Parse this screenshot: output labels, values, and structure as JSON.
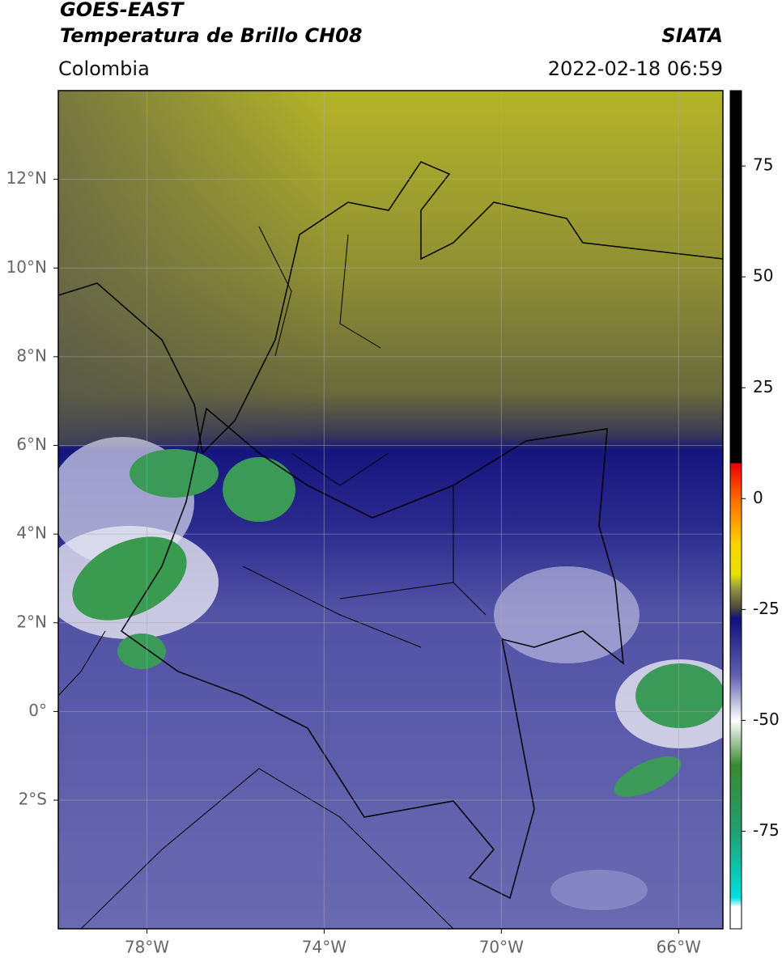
{
  "header": {
    "title": "GOES-EAST",
    "subtitle": "Temperatura de Brillo CH08",
    "agency": "SIATA",
    "region": "Colombia",
    "timestamp": "2022-02-18 06:59"
  },
  "map": {
    "xlim": [
      -80,
      -65
    ],
    "ylim": [
      -4.9,
      14
    ],
    "xticks": [
      {
        "value": -78,
        "label": "78°W"
      },
      {
        "value": -74,
        "label": "74°W"
      },
      {
        "value": -70,
        "label": "70°W"
      },
      {
        "value": -66,
        "label": "66°W"
      }
    ],
    "yticks": [
      {
        "value": 12,
        "label": "12°N"
      },
      {
        "value": 10,
        "label": "10°N"
      },
      {
        "value": 8,
        "label": "8°N"
      },
      {
        "value": 6,
        "label": "6°N"
      },
      {
        "value": 4,
        "label": "4°N"
      },
      {
        "value": 2,
        "label": "2°N"
      },
      {
        "value": 0,
        "label": "0°"
      },
      {
        "value": -2,
        "label": "2°S"
      }
    ],
    "grid": true
  },
  "colorbar": {
    "lim": [
      -97,
      92
    ],
    "ticks": [
      75,
      50,
      25,
      0,
      -25,
      -50,
      -75
    ],
    "stops": [
      {
        "value": 92,
        "color": "#000000"
      },
      {
        "value": 8,
        "color": "#000000"
      },
      {
        "value": 8,
        "color": "#e80000"
      },
      {
        "value": 0,
        "color": "#ff6a00"
      },
      {
        "value": -10,
        "color": "#ffd000"
      },
      {
        "value": -17,
        "color": "#e4e400"
      },
      {
        "value": -20,
        "color": "#9a9a40"
      },
      {
        "value": -25,
        "color": "#404040"
      },
      {
        "value": -27,
        "color": "#101080"
      },
      {
        "value": -40,
        "color": "#6262b0"
      },
      {
        "value": -50,
        "color": "#ffffff"
      },
      {
        "value": -60,
        "color": "#3a8a30"
      },
      {
        "value": -75,
        "color": "#20a070"
      },
      {
        "value": -90,
        "color": "#00e0e0"
      },
      {
        "value": -92,
        "color": "#ffffff"
      },
      {
        "value": -97,
        "color": "#ffffff"
      }
    ]
  }
}
